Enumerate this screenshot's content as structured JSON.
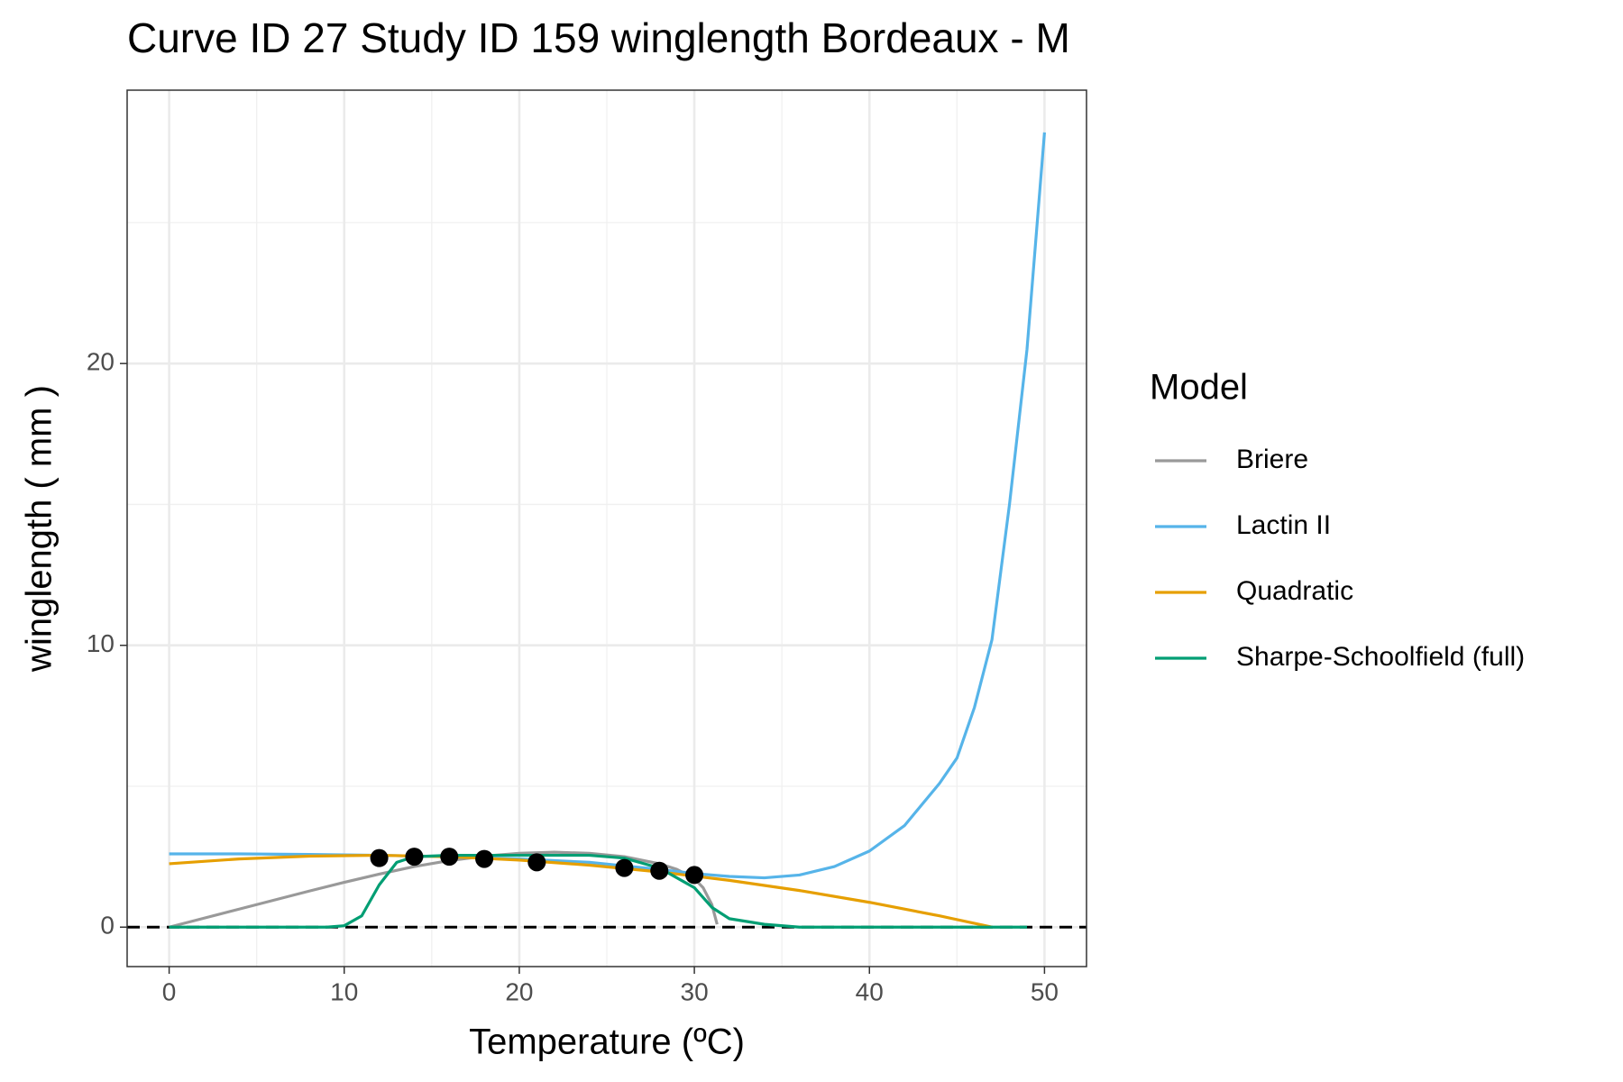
{
  "chart_data": {
    "type": "line",
    "title": "Curve ID 27 Study ID 159 winglength Bordeaux - M",
    "x_label": "Temperature (ºC)",
    "y_label": "winglength ( mm )",
    "legend_title": "Model",
    "xlim": [
      -2.4,
      52.4
    ],
    "ylim": [
      -1.4,
      29.7
    ],
    "xticks": [
      0,
      10,
      20,
      30,
      40,
      50
    ],
    "yticks": [
      0,
      10,
      20
    ],
    "xminor": [
      5,
      15,
      25,
      35,
      45
    ],
    "yminor": [
      5,
      15,
      25
    ],
    "grid": true,
    "legend": "right",
    "hline": 0,
    "points": {
      "color": "#000000",
      "x": [
        12,
        14,
        16,
        18,
        21,
        26,
        28,
        30
      ],
      "values": [
        2.45,
        2.5,
        2.5,
        2.42,
        2.3,
        2.1,
        2.0,
        1.85
      ]
    },
    "series": [
      {
        "name": "Briere",
        "color": "#999999",
        "x": [
          0,
          2,
          4,
          6,
          8,
          10,
          12,
          14,
          16,
          18,
          20,
          22,
          24,
          26,
          28,
          29,
          30,
          30.5,
          31,
          31.3
        ],
        "values": [
          0,
          0.32,
          0.64,
          0.96,
          1.28,
          1.59,
          1.88,
          2.15,
          2.36,
          2.52,
          2.62,
          2.66,
          2.62,
          2.5,
          2.25,
          2.05,
          1.72,
          1.4,
          0.8,
          0.1
        ]
      },
      {
        "name": "Lactin II",
        "color": "#56B4E9",
        "x": [
          0,
          4,
          8,
          12,
          16,
          20,
          24,
          28,
          30,
          32,
          34,
          36,
          38,
          40,
          42,
          44,
          45,
          46,
          47,
          48,
          49,
          50
        ],
        "values": [
          2.6,
          2.6,
          2.58,
          2.55,
          2.5,
          2.42,
          2.3,
          2.05,
          1.9,
          1.8,
          1.75,
          1.85,
          2.15,
          2.7,
          3.6,
          5.1,
          6.0,
          7.8,
          10.2,
          15.0,
          20.5,
          28.2
        ]
      },
      {
        "name": "Quadratic",
        "color": "#E69F00",
        "x": [
          0,
          4,
          8,
          12,
          16,
          20,
          24,
          28,
          32,
          36,
          40,
          44,
          47
        ],
        "values": [
          2.25,
          2.42,
          2.52,
          2.55,
          2.5,
          2.38,
          2.2,
          1.96,
          1.66,
          1.3,
          0.88,
          0.4,
          0
        ]
      },
      {
        "name": "Sharpe-Schoolfield (full)",
        "color": "#009E73",
        "x": [
          0,
          5,
          9,
          10,
          11,
          12,
          13,
          14,
          16,
          20,
          24,
          26,
          28,
          30,
          31,
          32,
          34,
          36,
          40,
          45,
          49
        ],
        "values": [
          0,
          0,
          0,
          0.05,
          0.4,
          1.5,
          2.3,
          2.5,
          2.55,
          2.55,
          2.55,
          2.45,
          2.1,
          1.4,
          0.7,
          0.3,
          0.1,
          0,
          0,
          0,
          0
        ]
      }
    ]
  }
}
